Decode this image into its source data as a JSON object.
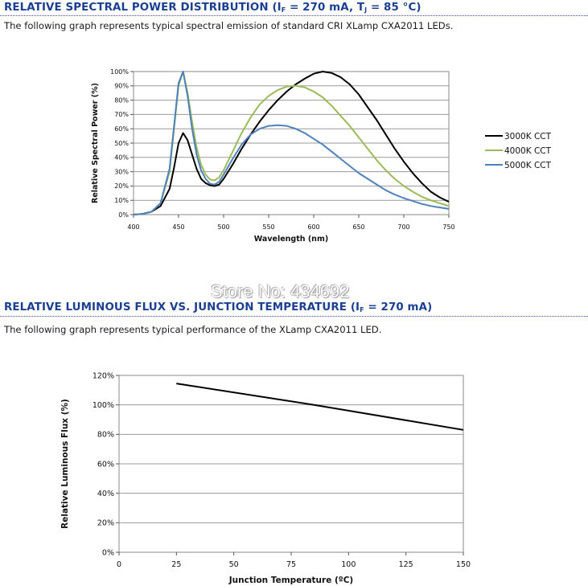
{
  "section1": {
    "title_prefix": "RELATIVE SPECTRAL POWER DISTRIBUTION (I",
    "title_sub1": "F",
    "title_mid": " = 270 mA, T",
    "title_sub2": "J",
    "title_suffix": " = 85 °C)",
    "description": "The following graph represents typical spectral emission of standard CRI XLamp CXA2011 LEDs."
  },
  "section2": {
    "title_prefix": "RELATIVE LUMINOUS FLUX VS. JUNCTION TEMPERATURE (I",
    "title_sub1": "F",
    "title_suffix": " = 270 mA)",
    "description": "The following graph represents typical performance of the XLamp CXA2011 LED."
  },
  "watermark": "Store No: 434692",
  "colors": {
    "title": "#1b3f93",
    "series_3000k": "#000000",
    "series_4000k": "#9bbb59",
    "series_5000k": "#4f81bd"
  },
  "chart_data": [
    {
      "type": "line",
      "xlabel": "Wavelength (nm)",
      "ylabel": "Relative Spectral Power (%)",
      "xlim": [
        400,
        750
      ],
      "ylim": [
        0,
        100
      ],
      "x_ticks": [
        "400",
        "450",
        "500",
        "550",
        "600",
        "650",
        "700",
        "750"
      ],
      "y_ticks": [
        "0%",
        "10%",
        "20%",
        "30%",
        "40%",
        "50%",
        "60%",
        "70%",
        "80%",
        "90%",
        "100%"
      ],
      "grid": true,
      "legend_position": "right",
      "series": [
        {
          "name": "3000K CCT",
          "color": "#000000",
          "points": [
            [
              400,
              0
            ],
            [
              410,
              0.5
            ],
            [
              420,
              2
            ],
            [
              430,
              6
            ],
            [
              440,
              18
            ],
            [
              445,
              33
            ],
            [
              450,
              50
            ],
            [
              455,
              57
            ],
            [
              460,
              52
            ],
            [
              465,
              42
            ],
            [
              470,
              32
            ],
            [
              475,
              25
            ],
            [
              480,
              22
            ],
            [
              485,
              20.5
            ],
            [
              490,
              20
            ],
            [
              495,
              21
            ],
            [
              500,
              25
            ],
            [
              510,
              35
            ],
            [
              520,
              46
            ],
            [
              530,
              56
            ],
            [
              540,
              65
            ],
            [
              550,
              73
            ],
            [
              560,
              80
            ],
            [
              570,
              86
            ],
            [
              580,
              91
            ],
            [
              590,
              95
            ],
            [
              600,
              98.5
            ],
            [
              610,
              100
            ],
            [
              620,
              99
            ],
            [
              630,
              96
            ],
            [
              640,
              91
            ],
            [
              650,
              84
            ],
            [
              660,
              75
            ],
            [
              670,
              66
            ],
            [
              680,
              56
            ],
            [
              690,
              46
            ],
            [
              700,
              37
            ],
            [
              710,
              29
            ],
            [
              720,
              22
            ],
            [
              730,
              16
            ],
            [
              740,
              12
            ],
            [
              750,
              9
            ]
          ]
        },
        {
          "name": "4000K CCT",
          "color": "#9bbb59",
          "points": [
            [
              400,
              0
            ],
            [
              410,
              0.5
            ],
            [
              420,
              2
            ],
            [
              430,
              8
            ],
            [
              440,
              30
            ],
            [
              445,
              60
            ],
            [
              450,
              90
            ],
            [
              455,
              100
            ],
            [
              460,
              85
            ],
            [
              465,
              65
            ],
            [
              470,
              47
            ],
            [
              475,
              35
            ],
            [
              480,
              28
            ],
            [
              485,
              24.5
            ],
            [
              490,
              24
            ],
            [
              495,
              26
            ],
            [
              500,
              31
            ],
            [
              510,
              44
            ],
            [
              520,
              57
            ],
            [
              530,
              68
            ],
            [
              540,
              77
            ],
            [
              550,
              83
            ],
            [
              560,
              87
            ],
            [
              570,
              89.5
            ],
            [
              580,
              90
            ],
            [
              590,
              89
            ],
            [
              600,
              86
            ],
            [
              610,
              82
            ],
            [
              620,
              76
            ],
            [
              630,
              69
            ],
            [
              640,
              62
            ],
            [
              650,
              54
            ],
            [
              660,
              46
            ],
            [
              670,
              38
            ],
            [
              680,
              31
            ],
            [
              690,
              25
            ],
            [
              700,
              20
            ],
            [
              710,
              16
            ],
            [
              720,
              12.5
            ],
            [
              730,
              10
            ],
            [
              740,
              8
            ],
            [
              750,
              6
            ]
          ]
        },
        {
          "name": "5000K CCT",
          "color": "#4f81bd",
          "points": [
            [
              400,
              0
            ],
            [
              410,
              0.5
            ],
            [
              420,
              2
            ],
            [
              430,
              8
            ],
            [
              440,
              32
            ],
            [
              445,
              62
            ],
            [
              450,
              92
            ],
            [
              455,
              100
            ],
            [
              460,
              83
            ],
            [
              465,
              60
            ],
            [
              470,
              42
            ],
            [
              475,
              31
            ],
            [
              480,
              25
            ],
            [
              485,
              21.5
            ],
            [
              490,
              21
            ],
            [
              495,
              23
            ],
            [
              500,
              28
            ],
            [
              510,
              39
            ],
            [
              520,
              49
            ],
            [
              530,
              56
            ],
            [
              540,
              60
            ],
            [
              550,
              62
            ],
            [
              560,
              62.5
            ],
            [
              570,
              62
            ],
            [
              580,
              60
            ],
            [
              590,
              57
            ],
            [
              600,
              53
            ],
            [
              610,
              49
            ],
            [
              620,
              44
            ],
            [
              630,
              39
            ],
            [
              640,
              34
            ],
            [
              650,
              29
            ],
            [
              660,
              25
            ],
            [
              670,
              21
            ],
            [
              680,
              17
            ],
            [
              690,
              14
            ],
            [
              700,
              11.5
            ],
            [
              710,
              9.5
            ],
            [
              720,
              7.5
            ],
            [
              730,
              6
            ],
            [
              740,
              5
            ],
            [
              750,
              4
            ]
          ]
        }
      ]
    },
    {
      "type": "line",
      "xlabel": "Junction Temperature (ºC)",
      "ylabel": "Relative Luminous Flux (%)",
      "xlim": [
        0,
        150
      ],
      "ylim": [
        0,
        120
      ],
      "x_ticks": [
        "0",
        "25",
        "50",
        "75",
        "100",
        "125",
        "150"
      ],
      "y_ticks": [
        "0%",
        "20%",
        "40%",
        "60%",
        "80%",
        "100%",
        "120%"
      ],
      "grid": true,
      "series": [
        {
          "color": "#000000",
          "points": [
            [
              25,
              114.5
            ],
            [
              85,
              100
            ],
            [
              150,
              83
            ]
          ]
        }
      ]
    }
  ]
}
